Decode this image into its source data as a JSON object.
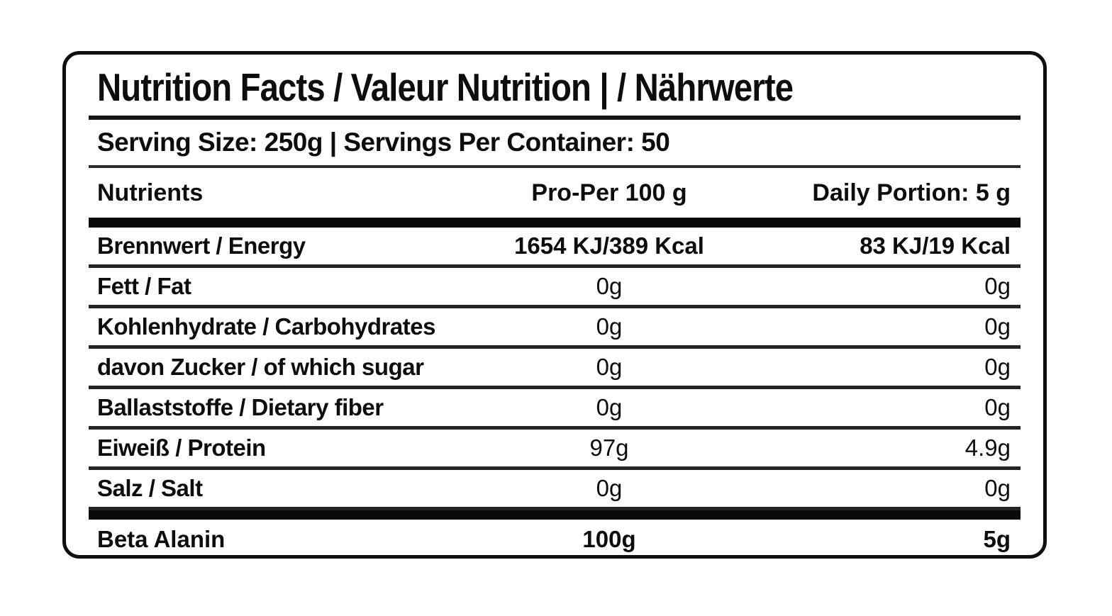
{
  "label": {
    "title": "Nutrition Facts / Valeur Nutrition | / Nährwerte",
    "serving_line": "Serving Size: 250g | Servings Per Container: 50",
    "columns": {
      "nutrients": "Nutrients",
      "per_100": "Pro-Per 100 g",
      "daily_portion": "Daily Portion: 5 g"
    },
    "rows": [
      {
        "name": "Brennwert / Energy",
        "per100": "1654 KJ/389 Kcal",
        "portion": "83 KJ/19 Kcal"
      },
      {
        "name": "Fett / Fat",
        "per100": "0g",
        "portion": "0g"
      },
      {
        "name": "Kohlenhydrate / Carbohydrates",
        "per100": "0g",
        "portion": "0g"
      },
      {
        "name": "davon Zucker / of which sugar",
        "per100": "0g",
        "portion": "0g"
      },
      {
        "name": "Ballaststoffe / Dietary fiber",
        "per100": "0g",
        "portion": "0g"
      },
      {
        "name": "Eiweiß / Protein",
        "per100": "97g",
        "portion": "4.9g"
      },
      {
        "name": "Salz / Salt",
        "per100": "0g",
        "portion": "0g"
      }
    ],
    "footer_row": {
      "name": "Beta Alanin",
      "per100": "100g",
      "portion": "5g"
    }
  },
  "colors": {
    "text": "#0d0d0d",
    "border": "#0f0f0f",
    "separator": "#242424",
    "thick_bar": "#0a0a0a",
    "background": "#ffffff"
  }
}
